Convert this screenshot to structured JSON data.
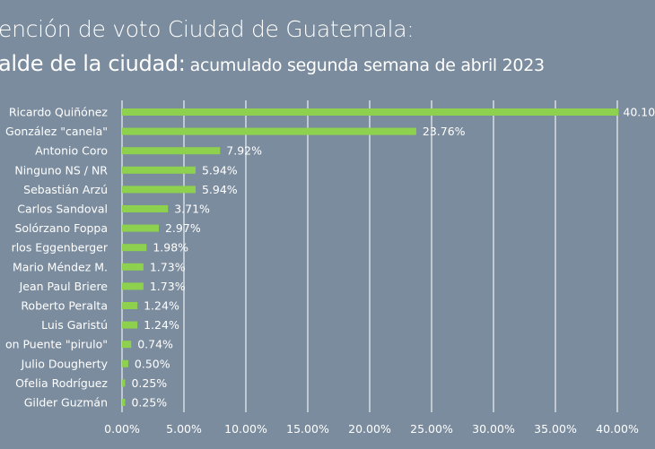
{
  "title": "ención de voto Ciudad de Guatemala:",
  "subtitle_main": "alde de la ciudad:",
  "subtitle_detail": "acumulado segunda semana de abril 2023",
  "colors": {
    "background": "#7b8c9e",
    "bar": "#8dd14f",
    "grid": "#d8dde3"
  },
  "chart_data": {
    "type": "bar",
    "orientation": "horizontal",
    "categories": [
      "Ricardo Quiñónez",
      "González \"canela\"",
      "Antonio Coro",
      "Ninguno NS / NR",
      "Sebastián Arzú",
      "Carlos Sandoval",
      "Solórzano Foppa",
      "rlos Eggenberger",
      "Mario Méndez M.",
      "Jean Paul Briere",
      "Roberto Peralta",
      "Luis Garistú",
      "on Puente \"pirulo\"",
      "Julio Dougherty",
      "Ofelia Rodríguez",
      "Gilder Guzmán"
    ],
    "values": [
      40.1,
      23.76,
      7.92,
      5.94,
      5.94,
      3.71,
      2.97,
      1.98,
      1.73,
      1.73,
      1.24,
      1.24,
      0.74,
      0.5,
      0.25,
      0.25
    ],
    "data_labels": [
      "40.10",
      "23.76%",
      "7.92%",
      "5.94%",
      "5.94%",
      "3.71%",
      "2.97%",
      "1.98%",
      "1.73%",
      "1.73%",
      "1.24%",
      "1.24%",
      "0.74%",
      "0.50%",
      "0.25%",
      "0.25%"
    ],
    "xlim": [
      0,
      40
    ],
    "x_ticks": [
      "0.00%",
      "5.00%",
      "10.00%",
      "15.00%",
      "20.00%",
      "25.00%",
      "30.00%",
      "35.00%",
      "40.00%"
    ],
    "grid": "vertical",
    "legend": "none"
  }
}
